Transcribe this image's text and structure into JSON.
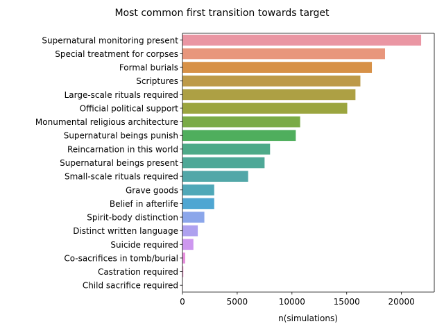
{
  "chart_data": {
    "type": "bar",
    "orientation": "horizontal",
    "title": "Most common first transition towards target",
    "xlabel": "n(simulations)",
    "ylabel": "",
    "xlim": [
      0,
      23000
    ],
    "xticks": [
      0,
      5000,
      10000,
      15000,
      20000
    ],
    "xtick_labels": [
      "0",
      "5000",
      "10000",
      "15000",
      "20000"
    ],
    "grid": false,
    "categories": [
      "Supernatural monitoring present",
      "Special treatment for corpses",
      "Formal burials",
      "Scriptures",
      "Large-scale rituals required",
      "Official political support",
      "Monumental religious architecture",
      "Supernatural beings punish",
      "Reincarnation in this world",
      "Supernatural beings present",
      "Small-scale rituals required",
      "Grave goods",
      "Belief in afterlife",
      "Spirit-body distinction",
      "Distinct written language",
      "Suicide required",
      "Co-sacrifices in tomb/burial",
      "Castration required",
      "Child sacrifice required"
    ],
    "values": [
      21800,
      18500,
      17300,
      16250,
      15800,
      15050,
      10750,
      10350,
      8000,
      7500,
      6000,
      2900,
      2900,
      2000,
      1400,
      1000,
      250,
      80,
      20
    ],
    "colors": [
      "#ea96a3",
      "#e8967c",
      "#d79147",
      "#bd9a49",
      "#ada044",
      "#9ba53f",
      "#7aab46",
      "#4fae5d",
      "#4daa88",
      "#4ea897",
      "#52a7a8",
      "#4fa8b8",
      "#4fa6d2",
      "#8ba6ea",
      "#aea1ef",
      "#cd97ef",
      "#e68ddc",
      "#e88ec4",
      "#e890b2"
    ]
  }
}
